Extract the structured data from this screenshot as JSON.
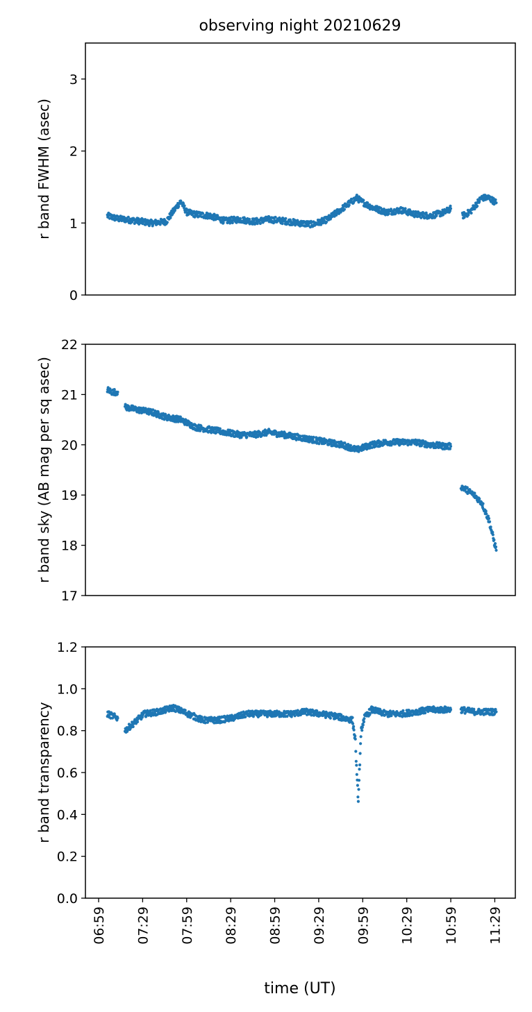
{
  "title": "observing night 20210629",
  "x_axis": {
    "label": "time (UT)",
    "ticks": [
      "06:59",
      "07:29",
      "07:59",
      "08:29",
      "08:59",
      "09:29",
      "09:59",
      "10:29",
      "10:59",
      "11:29"
    ],
    "range": [
      "06:50",
      "11:43"
    ]
  },
  "colors": {
    "series": "#1f77b4",
    "axes": "#000000",
    "background": "#ffffff"
  },
  "chart_data": [
    {
      "type": "scatter",
      "ylabel": "r band FWHM (asec)",
      "ylim": [
        0,
        3.5
      ],
      "yticks": [
        "0",
        "1",
        "2",
        "3"
      ],
      "grid": false,
      "segments": [
        {
          "x": [
            "07:05",
            "07:12",
            "07:17",
            "07:25",
            "07:35",
            "07:45",
            "07:53",
            "07:55",
            "07:59",
            "08:05",
            "08:15",
            "08:25",
            "08:35",
            "08:45",
            "08:55",
            "09:05",
            "09:15",
            "09:25",
            "09:35",
            "09:45",
            "09:55",
            "09:58",
            "10:05",
            "10:15",
            "10:25",
            "10:35",
            "10:45",
            "10:55",
            "10:59"
          ],
          "y": [
            1.1,
            1.06,
            1.05,
            1.03,
            1.0,
            1.02,
            1.25,
            1.3,
            1.15,
            1.12,
            1.1,
            1.03,
            1.05,
            1.02,
            1.05,
            1.03,
            1.0,
            0.98,
            1.05,
            1.2,
            1.35,
            1.3,
            1.22,
            1.15,
            1.18,
            1.12,
            1.1,
            1.15,
            1.2
          ]
        },
        {
          "x": [
            "11:07",
            "11:12",
            "11:20",
            "11:25",
            "11:30"
          ],
          "y": [
            1.1,
            1.15,
            1.35,
            1.35,
            1.28
          ]
        }
      ]
    },
    {
      "type": "scatter",
      "ylabel": "r band sky (AB mag per sq asec)",
      "ylim": [
        17,
        22
      ],
      "yticks": [
        "17",
        "18",
        "19",
        "20",
        "21",
        "22"
      ],
      "grid": false,
      "segments": [
        {
          "x": [
            "07:05",
            "07:08",
            "07:12"
          ],
          "y": [
            21.1,
            21.05,
            21.05
          ]
        },
        {
          "x": [
            "07:17",
            "07:25",
            "07:35",
            "07:45",
            "07:55",
            "08:05",
            "08:15",
            "08:25",
            "08:35",
            "08:45",
            "08:55",
            "09:05",
            "09:15",
            "09:25",
            "09:35",
            "09:45",
            "09:55",
            "10:05",
            "10:15",
            "10:25",
            "10:35",
            "10:45",
            "10:55",
            "10:59"
          ],
          "y": [
            20.75,
            20.7,
            20.65,
            20.55,
            20.5,
            20.35,
            20.3,
            20.25,
            20.2,
            20.2,
            20.25,
            20.2,
            20.15,
            20.1,
            20.05,
            20.0,
            19.9,
            20.0,
            20.05,
            20.05,
            20.05,
            20.0,
            19.97,
            19.97
          ]
        },
        {
          "x": [
            "11:06",
            "11:10",
            "11:15",
            "11:20",
            "11:25",
            "11:30"
          ],
          "y": [
            19.17,
            19.1,
            19.0,
            18.85,
            18.5,
            17.9
          ]
        }
      ]
    },
    {
      "type": "scatter",
      "ylabel": "r band transparency",
      "ylim": [
        0.0,
        1.2
      ],
      "yticks": [
        "0.0",
        "0.2",
        "0.4",
        "0.6",
        "0.8",
        "1.0",
        "1.2"
      ],
      "grid": false,
      "segments": [
        {
          "x": [
            "07:05",
            "07:12"
          ],
          "y": [
            0.88,
            0.86
          ]
        },
        {
          "x": [
            "07:17",
            "07:22",
            "07:30",
            "07:40",
            "07:50",
            "08:00",
            "08:10",
            "08:20",
            "08:30",
            "08:40",
            "08:50",
            "09:00",
            "09:10",
            "09:20",
            "09:30",
            "09:40",
            "09:52",
            "09:54",
            "09:55",
            "09:56",
            "09:57",
            "09:58",
            "10:00",
            "10:05",
            "10:15",
            "10:25",
            "10:35",
            "10:45",
            "10:55",
            "10:59"
          ],
          "y": [
            0.8,
            0.83,
            0.88,
            0.89,
            0.91,
            0.88,
            0.85,
            0.85,
            0.86,
            0.88,
            0.88,
            0.88,
            0.88,
            0.89,
            0.88,
            0.87,
            0.85,
            0.75,
            0.58,
            0.47,
            0.65,
            0.8,
            0.86,
            0.9,
            0.88,
            0.88,
            0.89,
            0.9,
            0.9,
            0.9
          ]
        },
        {
          "x": [
            "11:06",
            "11:15",
            "11:25",
            "11:30"
          ],
          "y": [
            0.9,
            0.89,
            0.89,
            0.89
          ]
        }
      ]
    }
  ]
}
